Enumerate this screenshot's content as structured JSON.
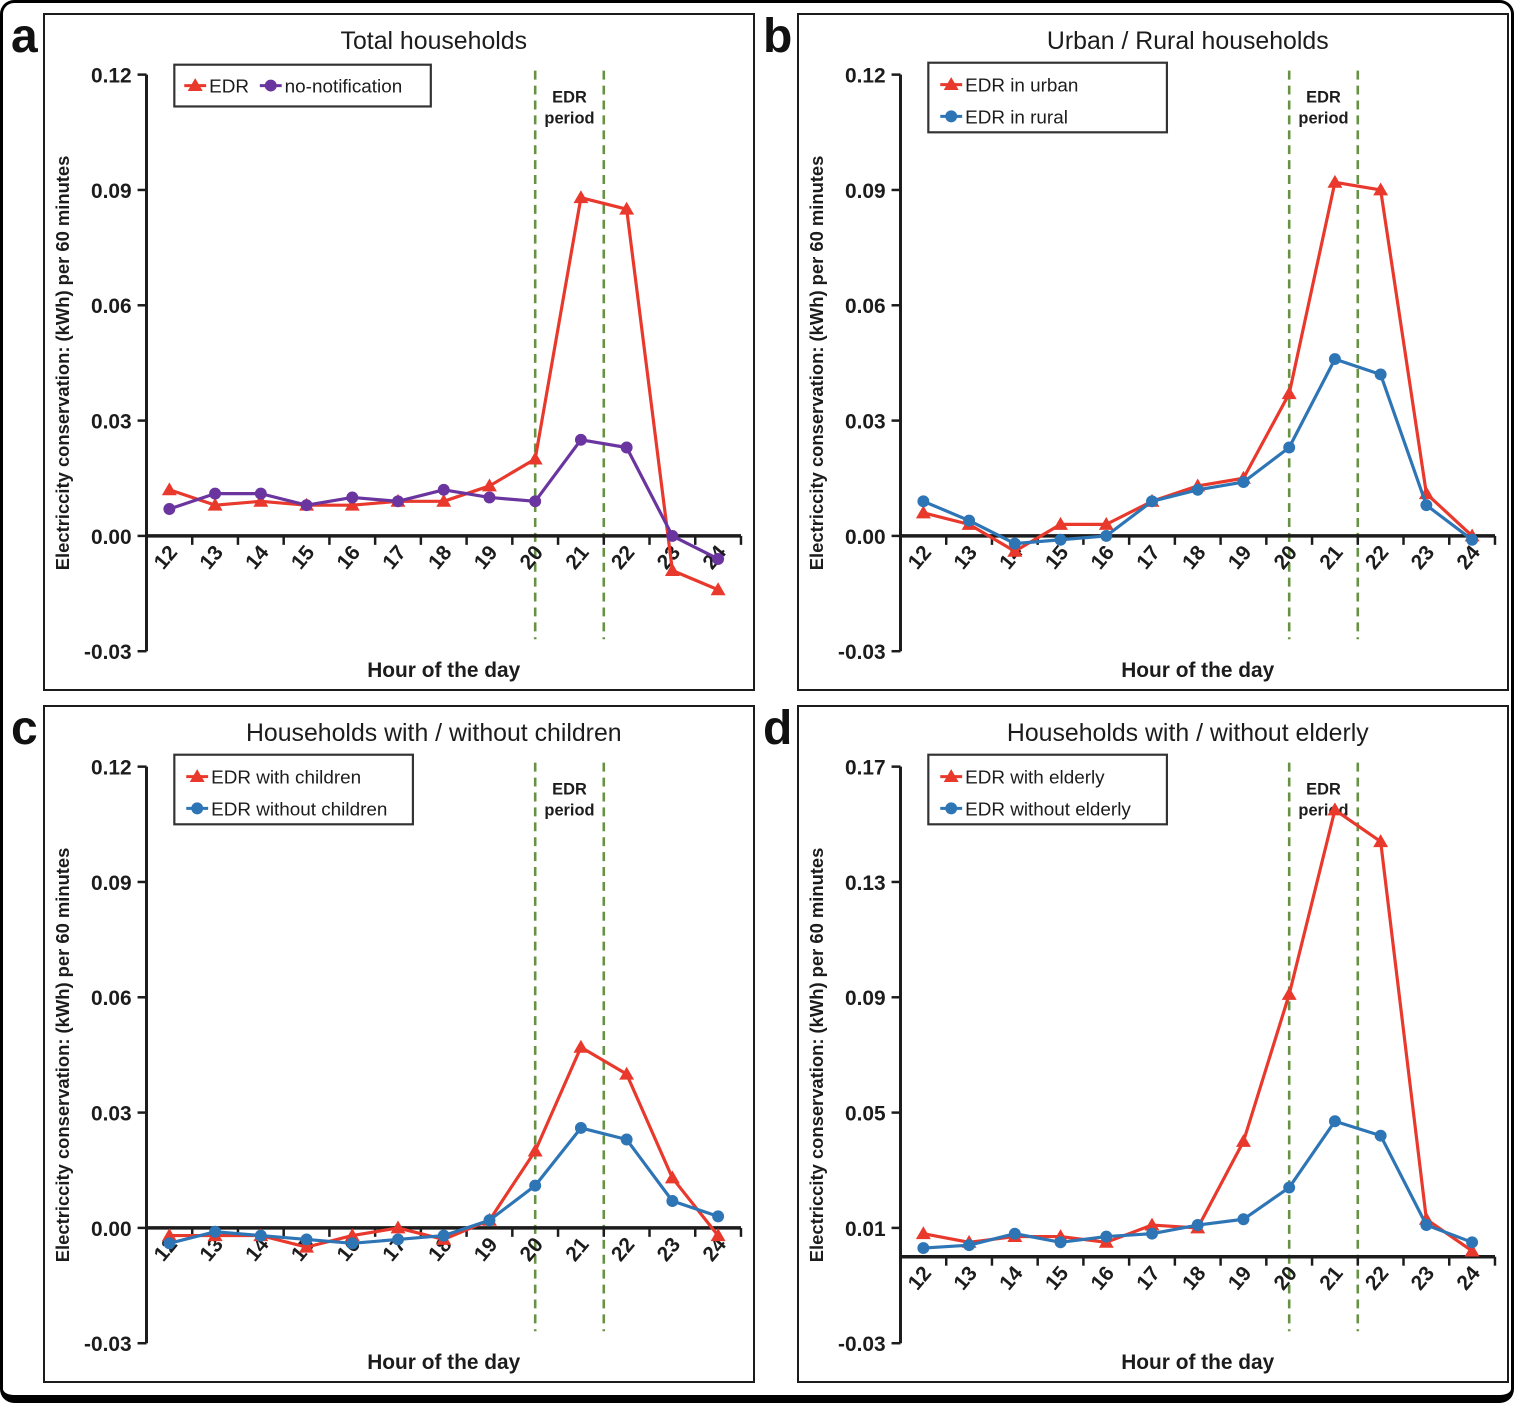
{
  "colors": {
    "edr_red": "#e8392c",
    "no_notification_purple": "#6b35a0",
    "edr_blue": "#2e75b6",
    "edr_period_green": "#679143",
    "axis_black": "#1c1c1c"
  },
  "chart_data": [
    {
      "type": "line",
      "panel_letter": "a",
      "title": "Total households",
      "xlabel": "Hour of the day",
      "ylabel": "Electriccity conservation: (kWh) per 60 minutes",
      "x": [
        12,
        13,
        14,
        15,
        16,
        17,
        18,
        19,
        20,
        21,
        22,
        23,
        24
      ],
      "ylim": [
        -0.03,
        0.12
      ],
      "yticks": [
        0.12,
        0.09,
        0.06,
        0.03,
        0.0,
        -0.03
      ],
      "ytick_labels": [
        "0.12",
        "0.09",
        "0.06",
        "0.03",
        "0.00",
        "-0.03"
      ],
      "legend_layout": "row",
      "legend_position": "top-left",
      "grid": false,
      "edr_period_label": "EDR period",
      "edr_period_lines_x": [
        20,
        21.5
      ],
      "series": [
        {
          "name": "EDR",
          "color": "#e8392c",
          "marker": "triangle",
          "values": [
            0.012,
            0.008,
            0.009,
            0.008,
            0.008,
            0.009,
            0.009,
            0.013,
            0.02,
            0.088,
            0.085,
            -0.009,
            -0.014
          ]
        },
        {
          "name": "no-notification",
          "color": "#6b35a0",
          "marker": "circle",
          "values": [
            0.007,
            0.011,
            0.011,
            0.008,
            0.01,
            0.009,
            0.012,
            0.01,
            0.009,
            0.025,
            0.023,
            0.0,
            -0.006
          ]
        }
      ]
    },
    {
      "type": "line",
      "panel_letter": "b",
      "title": "Urban / Rural households",
      "xlabel": "Hour of the day",
      "ylabel": "Electriccity conservation: (kWh) per 60 minutes",
      "x": [
        12,
        13,
        14,
        15,
        16,
        17,
        18,
        19,
        20,
        21,
        22,
        23,
        24
      ],
      "ylim": [
        -0.03,
        0.12
      ],
      "yticks": [
        0.12,
        0.09,
        0.06,
        0.03,
        0.0,
        -0.03
      ],
      "ytick_labels": [
        "0.12",
        "0.09",
        "0.06",
        "0.03",
        "0.00",
        "-0.03"
      ],
      "legend_layout": "column",
      "legend_position": "top-left",
      "grid": false,
      "edr_period_label": "EDR period",
      "edr_period_lines_x": [
        20,
        21.5
      ],
      "series": [
        {
          "name": "EDR in urban",
          "color": "#e8392c",
          "marker": "triangle",
          "values": [
            0.006,
            0.003,
            -0.004,
            0.003,
            0.003,
            0.009,
            0.013,
            0.015,
            0.037,
            0.092,
            0.09,
            0.011,
            0.0
          ]
        },
        {
          "name": "EDR in rural",
          "color": "#2e75b6",
          "marker": "circle",
          "values": [
            0.009,
            0.004,
            -0.002,
            -0.001,
            0.0,
            0.009,
            0.012,
            0.014,
            0.023,
            0.046,
            0.042,
            0.008,
            -0.001
          ]
        }
      ]
    },
    {
      "type": "line",
      "panel_letter": "c",
      "title": "Households with / without children",
      "xlabel": "Hour of the day",
      "ylabel": "Electriccity conservation: (kWh) per 60 minutes",
      "x": [
        12,
        13,
        14,
        15,
        16,
        17,
        18,
        19,
        20,
        21,
        22,
        23,
        24
      ],
      "ylim": [
        -0.03,
        0.12
      ],
      "yticks": [
        0.12,
        0.09,
        0.06,
        0.03,
        0.0,
        -0.03
      ],
      "ytick_labels": [
        "0.12",
        "0.09",
        "0.06",
        "0.03",
        "0.00",
        "-0.03"
      ],
      "legend_layout": "column",
      "legend_position": "top-left",
      "grid": false,
      "edr_period_label": "EDR period",
      "edr_period_lines_x": [
        20,
        21.5
      ],
      "series": [
        {
          "name": "EDR with children",
          "color": "#e8392c",
          "marker": "triangle",
          "values": [
            -0.002,
            -0.002,
            -0.002,
            -0.005,
            -0.002,
            0.0,
            -0.003,
            0.002,
            0.02,
            0.047,
            0.04,
            0.013,
            -0.002
          ]
        },
        {
          "name": "EDR without children",
          "color": "#2e75b6",
          "marker": "circle",
          "values": [
            -0.004,
            -0.001,
            -0.002,
            -0.003,
            -0.004,
            -0.003,
            -0.002,
            0.002,
            0.011,
            0.026,
            0.023,
            0.007,
            0.003
          ]
        }
      ]
    },
    {
      "type": "line",
      "panel_letter": "d",
      "title": "Households with / without elderly",
      "xlabel": "Hour of the day",
      "ylabel": "Electriccity conservation: (kWh) per 60 minutes",
      "x": [
        12,
        13,
        14,
        15,
        16,
        17,
        18,
        19,
        20,
        21,
        22,
        23,
        24
      ],
      "ylim": [
        -0.03,
        0.17
      ],
      "yticks": [
        0.17,
        0.13,
        0.09,
        0.05,
        0.01,
        -0.03
      ],
      "ytick_labels": [
        "0.17",
        "0.13",
        "0.09",
        "0.05",
        "0.01",
        "-0.03"
      ],
      "legend_layout": "column",
      "legend_position": "top-left",
      "grid": false,
      "edr_period_label": "EDR period",
      "edr_period_lines_x": [
        20,
        21.5
      ],
      "series": [
        {
          "name": "EDR with elderly",
          "color": "#e8392c",
          "marker": "triangle",
          "values": [
            0.008,
            0.005,
            0.007,
            0.007,
            0.005,
            0.011,
            0.01,
            0.04,
            0.091,
            0.155,
            0.144,
            0.013,
            0.002
          ]
        },
        {
          "name": "EDR without elderly",
          "color": "#2e75b6",
          "marker": "circle",
          "values": [
            0.003,
            0.004,
            0.008,
            0.005,
            0.007,
            0.008,
            0.011,
            0.013,
            0.024,
            0.047,
            0.042,
            0.011,
            0.005
          ]
        }
      ]
    }
  ]
}
